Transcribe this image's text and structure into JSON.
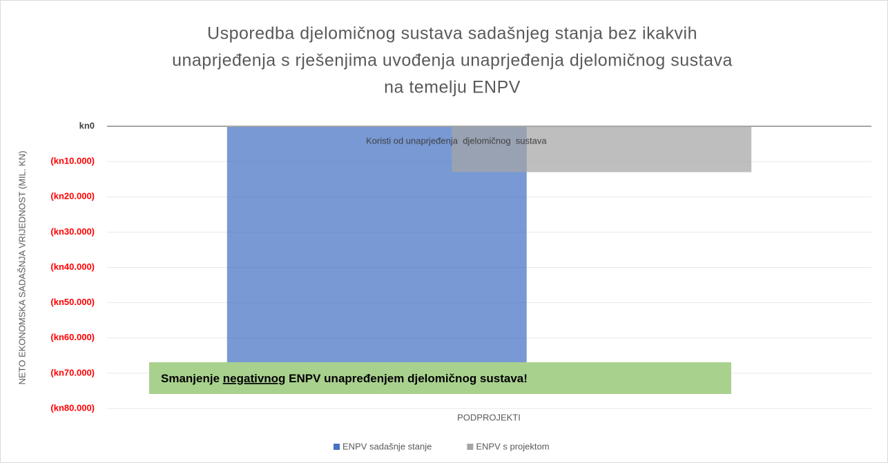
{
  "chart_data": {
    "type": "bar",
    "title": [
      "Usporedba djelomičnog sustava sadašnjeg stanja bez ikakvih",
      "unaprjeđenja s rješenjima uvođenja unaprjeđenja djelomičnog sustava",
      "na temelju ENPV"
    ],
    "y_axis_label": "NETO EKONOMSKA SADAŠNJA VRIJEDNOST (MIL. KN)",
    "x_axis_label": "PODPROJEKTI",
    "categories": [
      null
    ],
    "series": [
      {
        "name": "ENPV sadašnje stanje",
        "color": "#4472c4",
        "values": [
          -67000
        ]
      },
      {
        "name": "ENPV s projektom",
        "color": "#a5a5a5",
        "values": [
          -13000
        ]
      }
    ],
    "ylim": [
      -80000,
      0
    ],
    "yticks": [
      {
        "value": 0,
        "label": "kn0"
      },
      {
        "value": -10000,
        "label": "(kn10.000)"
      },
      {
        "value": -20000,
        "label": "(kn20.000)"
      },
      {
        "value": -30000,
        "label": "(kn30.000)"
      },
      {
        "value": -40000,
        "label": "(kn40.000)"
      },
      {
        "value": -50000,
        "label": "(kn50.000)"
      },
      {
        "value": -60000,
        "label": "(kn60.000)"
      },
      {
        "value": -70000,
        "label": "(kn70.000)"
      },
      {
        "value": -80000,
        "label": "(kn80.000)"
      }
    ],
    "negative_tick_color": "#ff0000",
    "grid": true,
    "legend": "bottom",
    "annotations": [
      {
        "text": "Koristi od unaprjeđenja  djelomičnog  sustava"
      },
      {
        "parts": [
          "Smanjenje ",
          "negativnog",
          " ENPV unapređenjem djelomičnog sustava!"
        ],
        "color": "#a9d18e"
      }
    ]
  }
}
